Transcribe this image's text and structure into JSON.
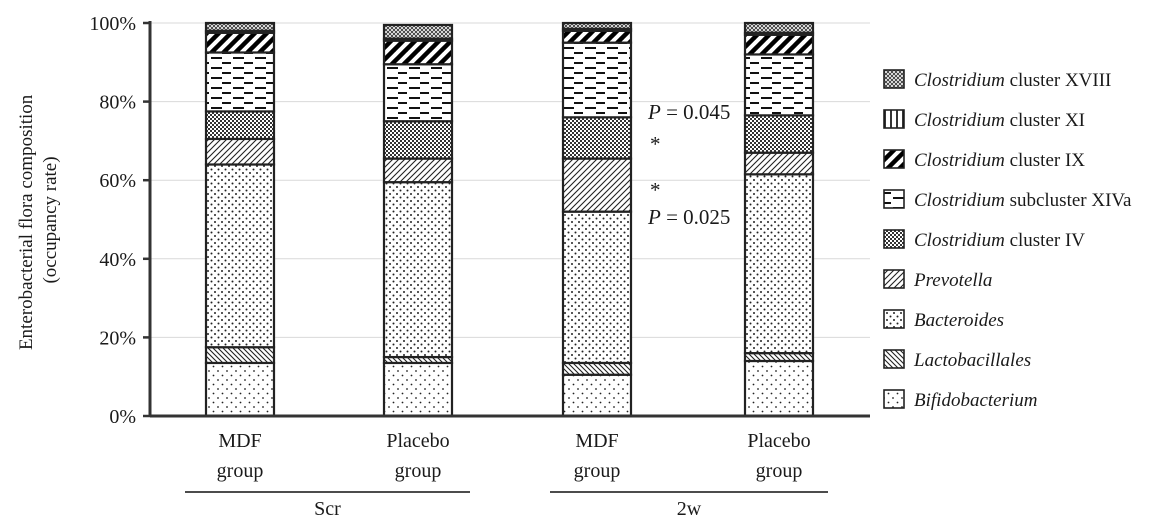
{
  "chart_data": {
    "type": "bar",
    "stacked": true,
    "ylabel_line1": "Enterobacterial flora composition",
    "ylabel_line2": "(occupancy rate)",
    "ylim": [
      0,
      100
    ],
    "yticks": [
      "0%",
      "20%",
      "40%",
      "60%",
      "80%",
      "100%"
    ],
    "grid": true,
    "legend_position": "right",
    "categories": [
      {
        "line1": "MDF",
        "line2": "group",
        "period": "Scr"
      },
      {
        "line1": "Placebo",
        "line2": "group",
        "period": "Scr"
      },
      {
        "line1": "MDF",
        "line2": "group",
        "period": "2w"
      },
      {
        "line1": "Placebo",
        "line2": "group",
        "period": "2w"
      }
    ],
    "groups": [
      "Scr",
      "2w"
    ],
    "series": [
      {
        "name": "Bifidobacterium",
        "italic_part": "Bifidobacterium",
        "rest": "",
        "pattern": "bifido",
        "values": [
          13.5,
          13.5,
          10.5,
          14.0
        ]
      },
      {
        "name": "Lactobacillales",
        "italic_part": "Lactobacillales",
        "rest": "",
        "pattern": "lacto",
        "values": [
          4.0,
          1.5,
          3.0,
          2.0
        ]
      },
      {
        "name": "Bacteroides",
        "italic_part": "Bacteroides",
        "rest": "",
        "pattern": "bactero",
        "values": [
          46.5,
          44.5,
          38.5,
          45.5
        ]
      },
      {
        "name": "Prevotella",
        "italic_part": "Prevotella",
        "rest": "",
        "pattern": "prevo",
        "values": [
          6.5,
          6.0,
          13.5,
          5.5
        ]
      },
      {
        "name": "Clostridium cluster IV",
        "italic_part": "Clostridium",
        "rest": " cluster IV",
        "pattern": "c4",
        "values": [
          7.0,
          9.5,
          10.5,
          9.5
        ]
      },
      {
        "name": "Clostridium subcluster XIVa",
        "italic_part": "Clostridium",
        "rest": " subcluster XIVa",
        "pattern": "c14",
        "values": [
          15.0,
          14.5,
          19.0,
          15.5
        ]
      },
      {
        "name": "Clostridium cluster IX",
        "italic_part": "Clostridium",
        "rest": " cluster IX",
        "pattern": "c9",
        "values": [
          5.0,
          6.0,
          3.0,
          5.0
        ]
      },
      {
        "name": "Clostridium cluster XI",
        "italic_part": "Clostridium",
        "rest": " cluster XI",
        "pattern": "c11",
        "values": [
          0.5,
          0.5,
          0.5,
          0.5
        ]
      },
      {
        "name": "Clostridium cluster XVIII",
        "italic_part": "Clostridium",
        "rest": " cluster XVIII",
        "pattern": "c18",
        "values": [
          2.0,
          3.5,
          1.5,
          2.5
        ]
      }
    ],
    "annotations": [
      {
        "p_italic": "P",
        "text": " = 0.045",
        "star": "*"
      },
      {
        "p_italic": "P",
        "text": " = 0.025",
        "star": "*"
      }
    ]
  }
}
